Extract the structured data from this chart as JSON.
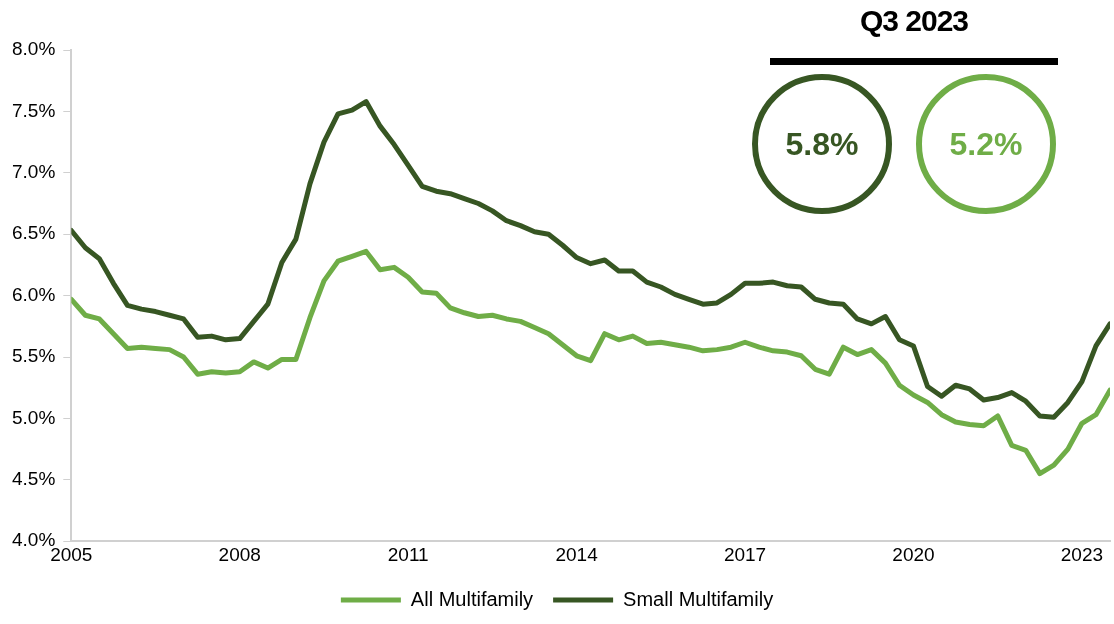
{
  "chart_data": {
    "type": "line",
    "x": [
      2005,
      2005.25,
      2005.5,
      2005.75,
      2006,
      2006.25,
      2006.5,
      2006.75,
      2007,
      2007.25,
      2007.5,
      2007.75,
      2008,
      2008.25,
      2008.5,
      2008.75,
      2009,
      2009.25,
      2009.5,
      2009.75,
      2010,
      2010.25,
      2010.5,
      2010.75,
      2011,
      2011.25,
      2011.5,
      2011.75,
      2012,
      2012.25,
      2012.5,
      2012.75,
      2013,
      2013.25,
      2013.5,
      2013.75,
      2014,
      2014.25,
      2014.5,
      2014.75,
      2015,
      2015.25,
      2015.5,
      2015.75,
      2016,
      2016.25,
      2016.5,
      2016.75,
      2017,
      2017.25,
      2017.5,
      2017.75,
      2018,
      2018.25,
      2018.5,
      2018.75,
      2019,
      2019.25,
      2019.5,
      2019.75,
      2020,
      2020.25,
      2020.5,
      2020.75,
      2021,
      2021.25,
      2021.5,
      2021.75,
      2022,
      2022.25,
      2022.5,
      2022.75,
      2023,
      2023.25,
      2023.5
    ],
    "series": [
      {
        "name": "All Multifamily",
        "color": "#6fad47",
        "values": [
          5.97,
          5.84,
          5.81,
          5.69,
          5.57,
          5.58,
          5.57,
          5.56,
          5.5,
          5.36,
          5.38,
          5.37,
          5.38,
          5.46,
          5.41,
          5.48,
          5.48,
          5.82,
          6.12,
          6.28,
          6.32,
          6.36,
          6.21,
          6.23,
          6.15,
          6.03,
          6.02,
          5.9,
          5.86,
          5.83,
          5.84,
          5.81,
          5.79,
          5.74,
          5.69,
          5.6,
          5.51,
          5.47,
          5.69,
          5.64,
          5.67,
          5.61,
          5.62,
          5.6,
          5.58,
          5.55,
          5.56,
          5.58,
          5.62,
          5.58,
          5.55,
          5.54,
          5.51,
          5.4,
          5.36,
          5.58,
          5.52,
          5.56,
          5.45,
          5.27,
          5.19,
          5.13,
          5.03,
          4.97,
          4.95,
          4.94,
          5.02,
          4.78,
          4.74,
          4.55,
          4.62,
          4.75,
          4.96,
          5.03,
          5.23
        ]
      },
      {
        "name": "Small Multifamily",
        "color": "#375623",
        "values": [
          6.53,
          6.39,
          6.3,
          6.1,
          5.92,
          5.89,
          5.87,
          5.84,
          5.81,
          5.66,
          5.67,
          5.64,
          5.65,
          5.79,
          5.93,
          6.27,
          6.46,
          6.91,
          7.25,
          7.48,
          7.51,
          7.58,
          7.38,
          7.23,
          7.06,
          6.89,
          6.85,
          6.83,
          6.79,
          6.75,
          6.69,
          6.61,
          6.57,
          6.52,
          6.5,
          6.41,
          6.31,
          6.26,
          6.29,
          6.2,
          6.2,
          6.11,
          6.07,
          6.01,
          5.97,
          5.93,
          5.94,
          6.01,
          6.1,
          6.1,
          6.11,
          6.08,
          6.07,
          5.97,
          5.94,
          5.93,
          5.81,
          5.77,
          5.83,
          5.64,
          5.59,
          5.26,
          5.18,
          5.27,
          5.24,
          5.15,
          5.17,
          5.21,
          5.14,
          5.02,
          5.01,
          5.13,
          5.3,
          5.59,
          5.77
        ]
      }
    ],
    "xlim": [
      2005,
      2023.5
    ],
    "xticks": [
      2005,
      2008,
      2011,
      2014,
      2017,
      2020,
      2023
    ],
    "ylim": [
      4,
      8
    ],
    "yticks": [
      {
        "value": 4,
        "label": "4.0%"
      },
      {
        "value": 4.5,
        "label": "4.5%"
      },
      {
        "value": 5,
        "label": "5.0%"
      },
      {
        "value": 5.5,
        "label": "5.5%"
      },
      {
        "value": 6,
        "label": "6.0%"
      },
      {
        "value": 6.5,
        "label": "6.5%"
      },
      {
        "value": 7,
        "label": "7.0%"
      },
      {
        "value": 7.5,
        "label": "7.5%"
      },
      {
        "value": 8,
        "label": "8.0%"
      }
    ],
    "grid": false,
    "legend": "bottom",
    "marker": "none",
    "annotations": [
      "Q3 2023",
      "5.8%",
      "5.2%"
    ]
  }
}
